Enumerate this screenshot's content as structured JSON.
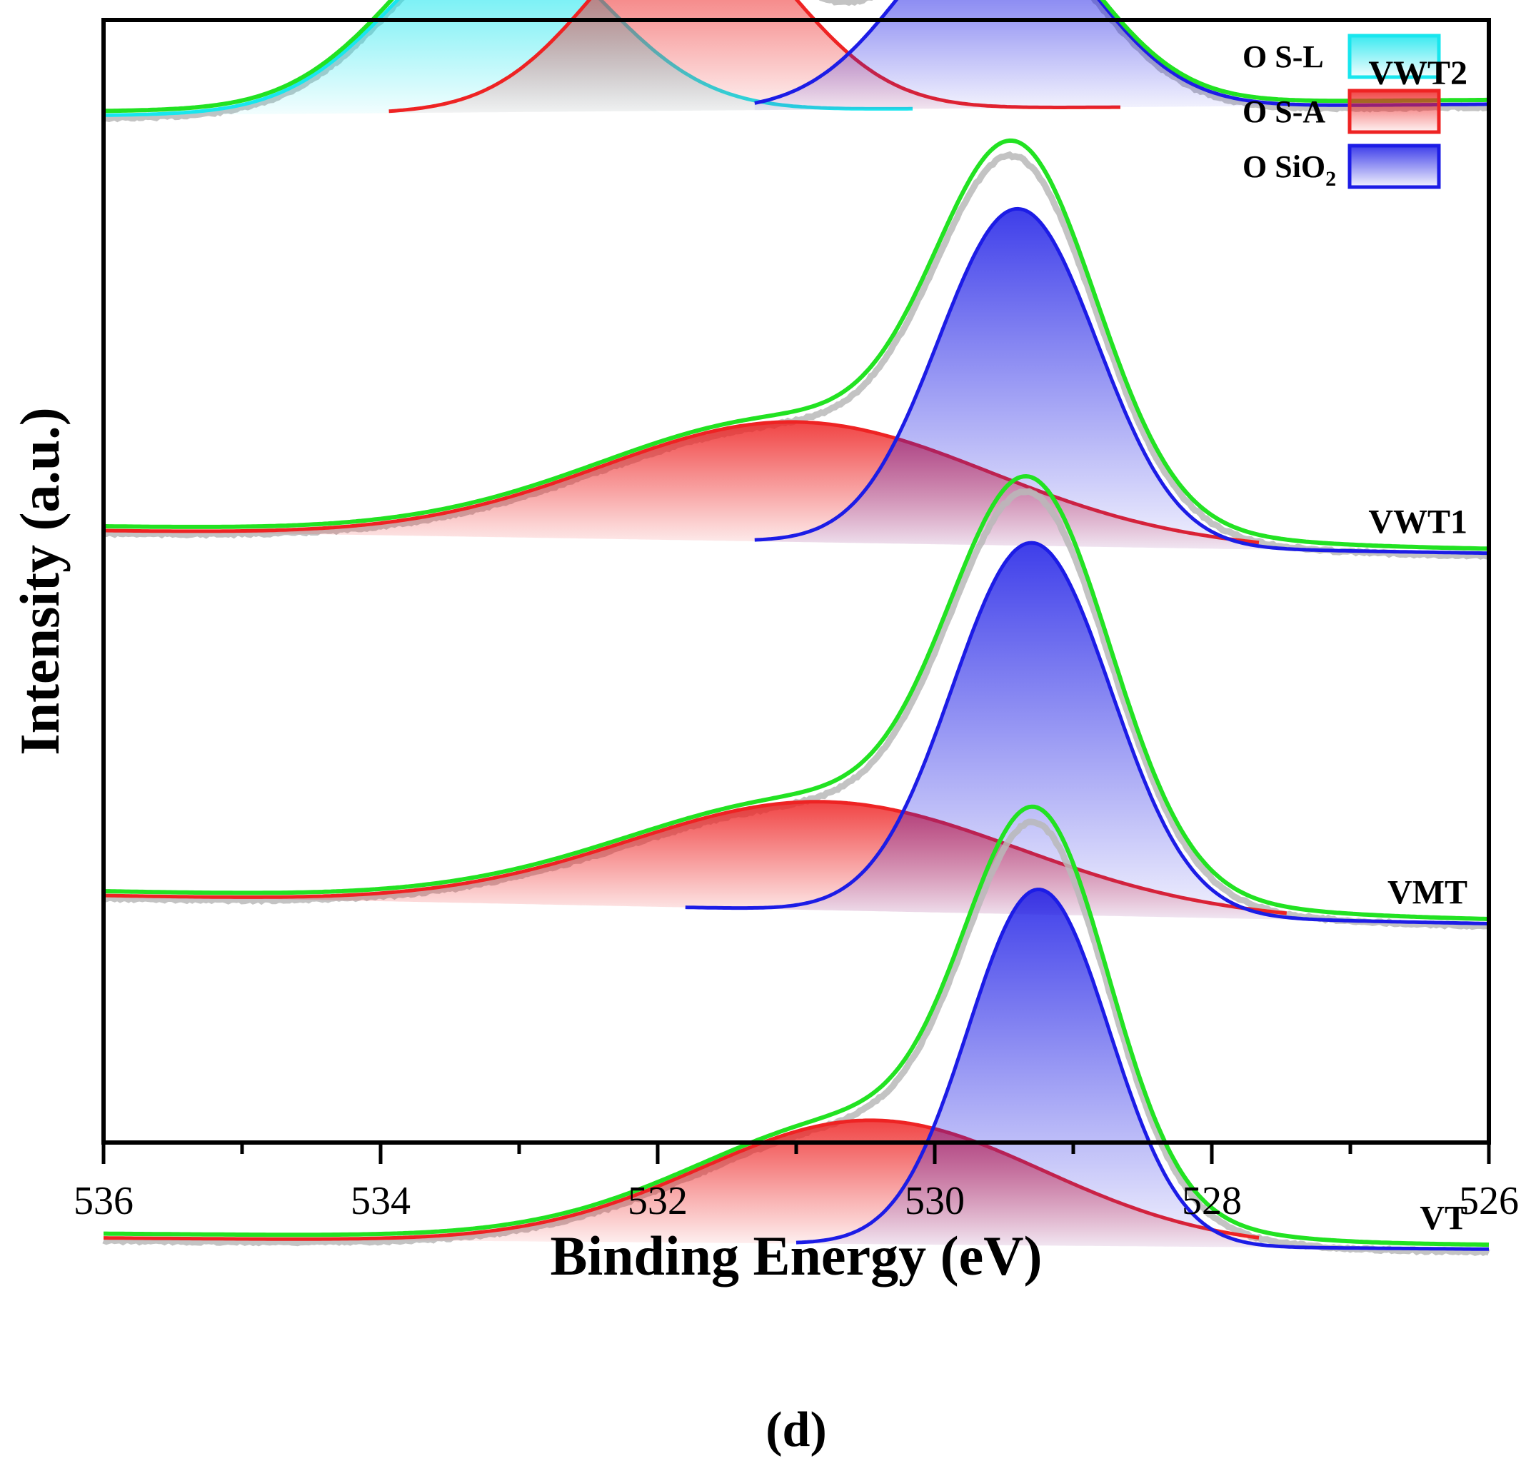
{
  "chart_data": {
    "type": "line",
    "xlabel": "Binding Energy (eV)",
    "ylabel": "Intensity (a.u.)",
    "panel_label": "(d)",
    "xlim": [
      536,
      526
    ],
    "x_reversed": true,
    "x_ticks": [
      "536",
      "534",
      "532",
      "530",
      "528",
      "526"
    ],
    "y_ticks_shown": false,
    "legend": {
      "placement": "top-right",
      "entries": [
        {
          "key": "sl",
          "name": "O S-L",
          "color": "#18e6ee"
        },
        {
          "key": "sa",
          "name": "O S-A",
          "color": "#ee2323"
        },
        {
          "key": "si",
          "name": "O SiO",
          "subscript": "2",
          "color": "#1c1ce6"
        }
      ]
    },
    "envelope_color": "#22e222",
    "raw_color": "#b8b8b8",
    "samples": [
      {
        "name": "VWT2",
        "baseline": [
          0.085,
          0.075
        ],
        "components": [
          {
            "key": "sl",
            "center": 533.15,
            "height": 0.23,
            "fwhm": 1.8,
            "start": 536.0,
            "end": 530.15
          },
          {
            "key": "sa",
            "center": 531.75,
            "height": 0.245,
            "fwhm": 1.7,
            "start": 533.95,
            "end": 528.65
          },
          {
            "key": "si",
            "center": 529.55,
            "height": 0.25,
            "fwhm": 1.6,
            "start": 531.3,
            "end": 526.0
          }
        ]
      },
      {
        "name": "VWT1",
        "baseline": [
          0.455,
          0.475
        ],
        "components": [
          {
            "key": "sa",
            "center": 531.0,
            "height": 0.155,
            "fwhm": 3.3,
            "start": 536.0,
            "end": 527.65
          },
          {
            "key": "si",
            "center": 529.4,
            "height": 0.435,
            "fwhm": 1.35,
            "start": 531.3,
            "end": 526.0
          }
        ]
      },
      {
        "name": "VMT",
        "baseline": [
          0.78,
          0.805
        ],
        "components": [
          {
            "key": "sa",
            "center": 530.8,
            "height": 0.14,
            "fwhm": 3.3,
            "start": 536.0,
            "end": 527.45
          },
          {
            "key": "si",
            "center": 529.3,
            "height": 0.48,
            "fwhm": 1.35,
            "start": 531.8,
            "end": 526.0
          }
        ]
      },
      {
        "name": "VT",
        "baseline": [
          1.085,
          1.095
        ],
        "components": [
          {
            "key": "sa",
            "center": 530.45,
            "height": 0.16,
            "fwhm": 2.9,
            "start": 536.0,
            "end": 527.65
          },
          {
            "key": "si",
            "center": 529.25,
            "height": 0.46,
            "fwhm": 1.2,
            "start": 531.0,
            "end": 526.0
          }
        ]
      }
    ]
  }
}
